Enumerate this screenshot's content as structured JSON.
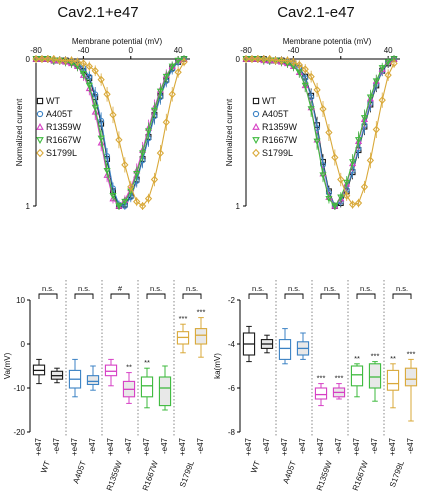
{
  "titles": {
    "left": "Cav2.1+e47",
    "right": "Cav2.1-e47"
  },
  "colors": {
    "WT": "#1a1a1a",
    "A405T": "#3b82c4",
    "R1359W": "#d63fc4",
    "R1667W": "#3dba3d",
    "S1799L": "#d9a93a"
  },
  "chart_data": [
    {
      "type": "line",
      "title": "Cav2.1+e47",
      "xlabel": "Membrane potential (mV)",
      "ylabel": "Normalized current",
      "xlim": [
        -80,
        50
      ],
      "ylim": [
        0,
        1
      ],
      "x_ticks": [
        "-80",
        "-40",
        "0",
        "40"
      ],
      "y_ticks": [
        "0",
        "1"
      ],
      "y_inverted": true,
      "legend": "left",
      "x": [
        -80,
        -75,
        -70,
        -65,
        -60,
        -55,
        -50,
        -45,
        -40,
        -35,
        -30,
        -25,
        -20,
        -15,
        -10,
        -5,
        0,
        5,
        10,
        15,
        20,
        25,
        30,
        35,
        40,
        45
      ],
      "series": [
        {
          "name": "WT",
          "values": [
            0.0,
            0.0,
            0.0,
            0.01,
            0.01,
            0.01,
            0.02,
            0.04,
            0.08,
            0.13,
            0.26,
            0.44,
            0.68,
            0.9,
            1.0,
            0.99,
            0.93,
            0.82,
            0.68,
            0.53,
            0.38,
            0.25,
            0.14,
            0.06,
            0.02,
            0.0
          ]
        },
        {
          "name": "A405T",
          "values": [
            0.0,
            0.0,
            0.0,
            0.01,
            0.01,
            0.01,
            0.02,
            0.03,
            0.06,
            0.12,
            0.24,
            0.42,
            0.66,
            0.88,
            0.99,
            1.0,
            0.94,
            0.83,
            0.69,
            0.54,
            0.39,
            0.26,
            0.15,
            0.07,
            0.02,
            0.0
          ]
        },
        {
          "name": "R1359W",
          "values": [
            0.0,
            0.0,
            0.0,
            0.01,
            0.01,
            0.02,
            0.03,
            0.05,
            0.11,
            0.2,
            0.36,
            0.57,
            0.79,
            0.95,
            1.0,
            0.96,
            0.88,
            0.76,
            0.62,
            0.47,
            0.33,
            0.21,
            0.11,
            0.05,
            0.01,
            0.0
          ]
        },
        {
          "name": "R1667W",
          "values": [
            0.0,
            0.0,
            0.0,
            0.01,
            0.01,
            0.02,
            0.03,
            0.05,
            0.1,
            0.18,
            0.33,
            0.54,
            0.76,
            0.93,
            1.0,
            0.97,
            0.9,
            0.78,
            0.64,
            0.49,
            0.35,
            0.22,
            0.12,
            0.05,
            0.01,
            0.0
          ]
        },
        {
          "name": "S1799L",
          "values": [
            0.0,
            0.0,
            0.0,
            0.0,
            0.01,
            0.01,
            0.01,
            0.02,
            0.03,
            0.05,
            0.08,
            0.14,
            0.24,
            0.38,
            0.55,
            0.72,
            0.87,
            0.97,
            1.0,
            0.95,
            0.82,
            0.64,
            0.43,
            0.24,
            0.09,
            0.02
          ]
        }
      ]
    },
    {
      "type": "line",
      "title": "Cav2.1-e47",
      "xlabel": "Membrane potentia (mV)",
      "ylabel": "Normalized current",
      "xlim": [
        -80,
        50
      ],
      "ylim": [
        0,
        1
      ],
      "x_ticks": [
        "-80",
        "-40",
        "0",
        "40"
      ],
      "y_ticks": [
        "0",
        "1"
      ],
      "y_inverted": true,
      "legend": "left",
      "x": [
        -80,
        -75,
        -70,
        -65,
        -60,
        -55,
        -50,
        -45,
        -40,
        -35,
        -30,
        -25,
        -20,
        -15,
        -10,
        -5,
        0,
        5,
        10,
        15,
        20,
        25,
        30,
        35,
        40,
        45
      ],
      "series": [
        {
          "name": "WT",
          "values": [
            0.0,
            0.0,
            0.0,
            0.0,
            0.01,
            0.01,
            0.01,
            0.02,
            0.03,
            0.06,
            0.12,
            0.25,
            0.45,
            0.7,
            0.9,
            1.0,
            0.98,
            0.9,
            0.77,
            0.62,
            0.46,
            0.31,
            0.18,
            0.08,
            0.03,
            0.0
          ]
        },
        {
          "name": "A405T",
          "values": [
            0.0,
            0.0,
            0.0,
            0.0,
            0.01,
            0.01,
            0.01,
            0.02,
            0.03,
            0.06,
            0.13,
            0.26,
            0.47,
            0.72,
            0.91,
            1.0,
            0.97,
            0.89,
            0.76,
            0.61,
            0.45,
            0.3,
            0.17,
            0.08,
            0.02,
            0.0
          ]
        },
        {
          "name": "R1359W",
          "values": [
            0.0,
            0.0,
            0.0,
            0.01,
            0.01,
            0.01,
            0.02,
            0.03,
            0.05,
            0.09,
            0.18,
            0.33,
            0.55,
            0.78,
            0.94,
            1.0,
            0.95,
            0.85,
            0.71,
            0.56,
            0.41,
            0.27,
            0.15,
            0.07,
            0.02,
            0.0
          ]
        },
        {
          "name": "R1667W",
          "values": [
            0.0,
            0.0,
            0.0,
            0.01,
            0.01,
            0.01,
            0.02,
            0.03,
            0.05,
            0.09,
            0.18,
            0.34,
            0.56,
            0.79,
            0.95,
            1.0,
            0.94,
            0.84,
            0.7,
            0.55,
            0.4,
            0.26,
            0.15,
            0.06,
            0.02,
            0.0
          ]
        },
        {
          "name": "S1799L",
          "values": [
            0.0,
            0.0,
            0.0,
            0.0,
            0.0,
            0.01,
            0.01,
            0.01,
            0.02,
            0.04,
            0.07,
            0.12,
            0.21,
            0.34,
            0.5,
            0.67,
            0.82,
            0.93,
            0.99,
            0.98,
            0.87,
            0.69,
            0.48,
            0.28,
            0.11,
            0.03
          ]
        }
      ]
    },
    {
      "type": "box",
      "ylabel": "Va(mV)",
      "ylim": [
        -20,
        10
      ],
      "y_ticks": [
        "-20",
        "-10",
        "0",
        "10"
      ],
      "categories": [
        "+e47",
        "-e47",
        "+e47",
        "-e47",
        "+e47",
        "-e47",
        "+e47",
        "-e47",
        "+e47",
        "-e47"
      ],
      "groups": [
        "WT",
        "A405T",
        "R1359W",
        "R1667W",
        "S1799L"
      ],
      "boxes": [
        {
          "group": "WT",
          "condition": "+e47",
          "min": -9.0,
          "q1": -7.0,
          "median": -6.0,
          "q3": -4.8,
          "max": -3.5,
          "mark": ""
        },
        {
          "group": "WT",
          "condition": "-e47",
          "min": -8.8,
          "q1": -8.0,
          "median": -7.2,
          "q3": -6.2,
          "max": -5.5,
          "mark": ""
        },
        {
          "group": "A405T",
          "condition": "+e47",
          "min": -12.0,
          "q1": -10.0,
          "median": -8.0,
          "q3": -6.0,
          "max": -3.5,
          "mark": ""
        },
        {
          "group": "A405T",
          "condition": "-e47",
          "min": -10.5,
          "q1": -9.2,
          "median": -8.5,
          "q3": -7.2,
          "max": -5.0,
          "mark": ""
        },
        {
          "group": "R1359W",
          "condition": "+e47",
          "min": -9.5,
          "q1": -7.2,
          "median": -6.2,
          "q3": -4.8,
          "max": -3.5,
          "mark": ""
        },
        {
          "group": "R1359W",
          "condition": "-e47",
          "min": -13.5,
          "q1": -12.0,
          "median": -10.3,
          "q3": -8.5,
          "max": -6.5,
          "mark": "**"
        },
        {
          "group": "R1667W",
          "condition": "+e47",
          "min": -14.5,
          "q1": -12.0,
          "median": -9.5,
          "q3": -7.5,
          "max": -5.5,
          "mark": "**"
        },
        {
          "group": "R1667W",
          "condition": "-e47",
          "min": -15.0,
          "q1": -14.0,
          "median": -10.0,
          "q3": -7.5,
          "max": -5.0,
          "mark": ""
        },
        {
          "group": "S1799L",
          "condition": "+e47",
          "min": -2.0,
          "q1": 0.0,
          "median": 1.5,
          "q3": 2.8,
          "max": 4.5,
          "mark": "***"
        },
        {
          "group": "S1799L",
          "condition": "-e47",
          "min": -3.0,
          "q1": 0.0,
          "median": 2.0,
          "q3": 3.5,
          "max": 6.0,
          "mark": "***"
        }
      ],
      "comparisons": [
        "n.s.",
        "n.s.",
        "#",
        "n.s.",
        "n.s."
      ]
    },
    {
      "type": "box",
      "ylabel": "ka(mV)",
      "ylim": [
        -8,
        -2
      ],
      "y_ticks": [
        "-8",
        "-6",
        "-4",
        "-2"
      ],
      "categories": [
        "+e47",
        "-e47",
        "+e47",
        "-e47",
        "+e47",
        "-e47",
        "+e47",
        "-e47",
        "+e47",
        "-e47"
      ],
      "groups": [
        "WT",
        "A405T",
        "R1359W",
        "R1667W",
        "S1799L"
      ],
      "boxes": [
        {
          "group": "WT",
          "condition": "+e47",
          "min": -4.8,
          "q1": -4.5,
          "median": -4.0,
          "q3": -3.5,
          "max": -3.2,
          "mark": ""
        },
        {
          "group": "WT",
          "condition": "-e47",
          "min": -4.4,
          "q1": -4.2,
          "median": -4.0,
          "q3": -3.8,
          "max": -3.6,
          "mark": ""
        },
        {
          "group": "A405T",
          "condition": "+e47",
          "min": -4.9,
          "q1": -4.7,
          "median": -4.2,
          "q3": -3.8,
          "max": -3.3,
          "mark": ""
        },
        {
          "group": "A405T",
          "condition": "-e47",
          "min": -4.7,
          "q1": -4.5,
          "median": -4.2,
          "q3": -3.9,
          "max": -3.5,
          "mark": ""
        },
        {
          "group": "R1359W",
          "condition": "+e47",
          "min": -6.8,
          "q1": -6.5,
          "median": -6.3,
          "q3": -6.0,
          "max": -5.8,
          "mark": "***"
        },
        {
          "group": "R1359W",
          "condition": "-e47",
          "min": -6.5,
          "q1": -6.4,
          "median": -6.2,
          "q3": -6.0,
          "max": -5.8,
          "mark": "***"
        },
        {
          "group": "R1667W",
          "condition": "+e47",
          "min": -6.4,
          "q1": -5.9,
          "median": -5.4,
          "q3": -5.0,
          "max": -4.9,
          "mark": "**"
        },
        {
          "group": "R1667W",
          "condition": "-e47",
          "min": -6.6,
          "q1": -6.0,
          "median": -5.5,
          "q3": -4.9,
          "max": -4.8,
          "mark": "***"
        },
        {
          "group": "S1799L",
          "condition": "+e47",
          "min": -6.9,
          "q1": -6.1,
          "median": -5.8,
          "q3": -5.2,
          "max": -4.9,
          "mark": "**"
        },
        {
          "group": "S1799L",
          "condition": "-e47",
          "min": -7.5,
          "q1": -5.9,
          "median": -5.6,
          "q3": -5.1,
          "max": -4.7,
          "mark": "***"
        }
      ],
      "comparisons": [
        "n.s.",
        "n.s.",
        "n.s.",
        "n.s.",
        "n.s."
      ]
    }
  ]
}
